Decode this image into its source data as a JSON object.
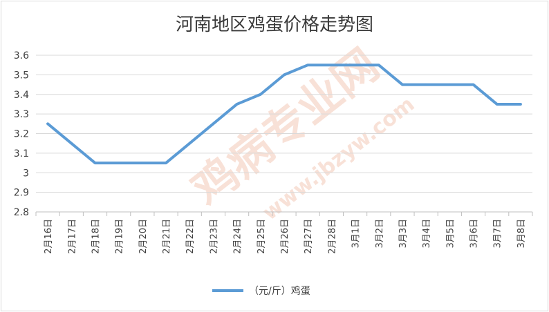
{
  "chart_data": {
    "type": "line",
    "title": "河南地区鸡蛋价格走势图",
    "xlabel": "",
    "ylabel": "",
    "ylim": [
      2.8,
      3.6
    ],
    "yticks": [
      "2.8",
      "2.9",
      "3",
      "3.1",
      "3.2",
      "3.3",
      "3.4",
      "3.5",
      "3.6"
    ],
    "grid": true,
    "legend_position": "bottom",
    "categories": [
      "2月16日",
      "2月17日",
      "2月18日",
      "2月19日",
      "2月20日",
      "2月21日",
      "2月22日",
      "2月23日",
      "2月24日",
      "2月25日",
      "2月26日",
      "2月27日",
      "2月28日",
      "3月1日",
      "3月2日",
      "3月3日",
      "3月4日",
      "3月5日",
      "3月6日",
      "3月7日",
      "3月8日"
    ],
    "series": [
      {
        "name": "（元/斤）鸡蛋",
        "color": "#5b9bd5",
        "values": [
          3.25,
          3.15,
          3.05,
          3.05,
          3.05,
          3.05,
          3.15,
          3.25,
          3.35,
          3.4,
          3.5,
          3.55,
          3.55,
          3.55,
          3.55,
          3.45,
          3.45,
          3.45,
          3.45,
          3.35,
          3.35
        ]
      }
    ]
  },
  "watermark": {
    "main": "鸡病专业网",
    "url": "www.jbzyw.com"
  }
}
